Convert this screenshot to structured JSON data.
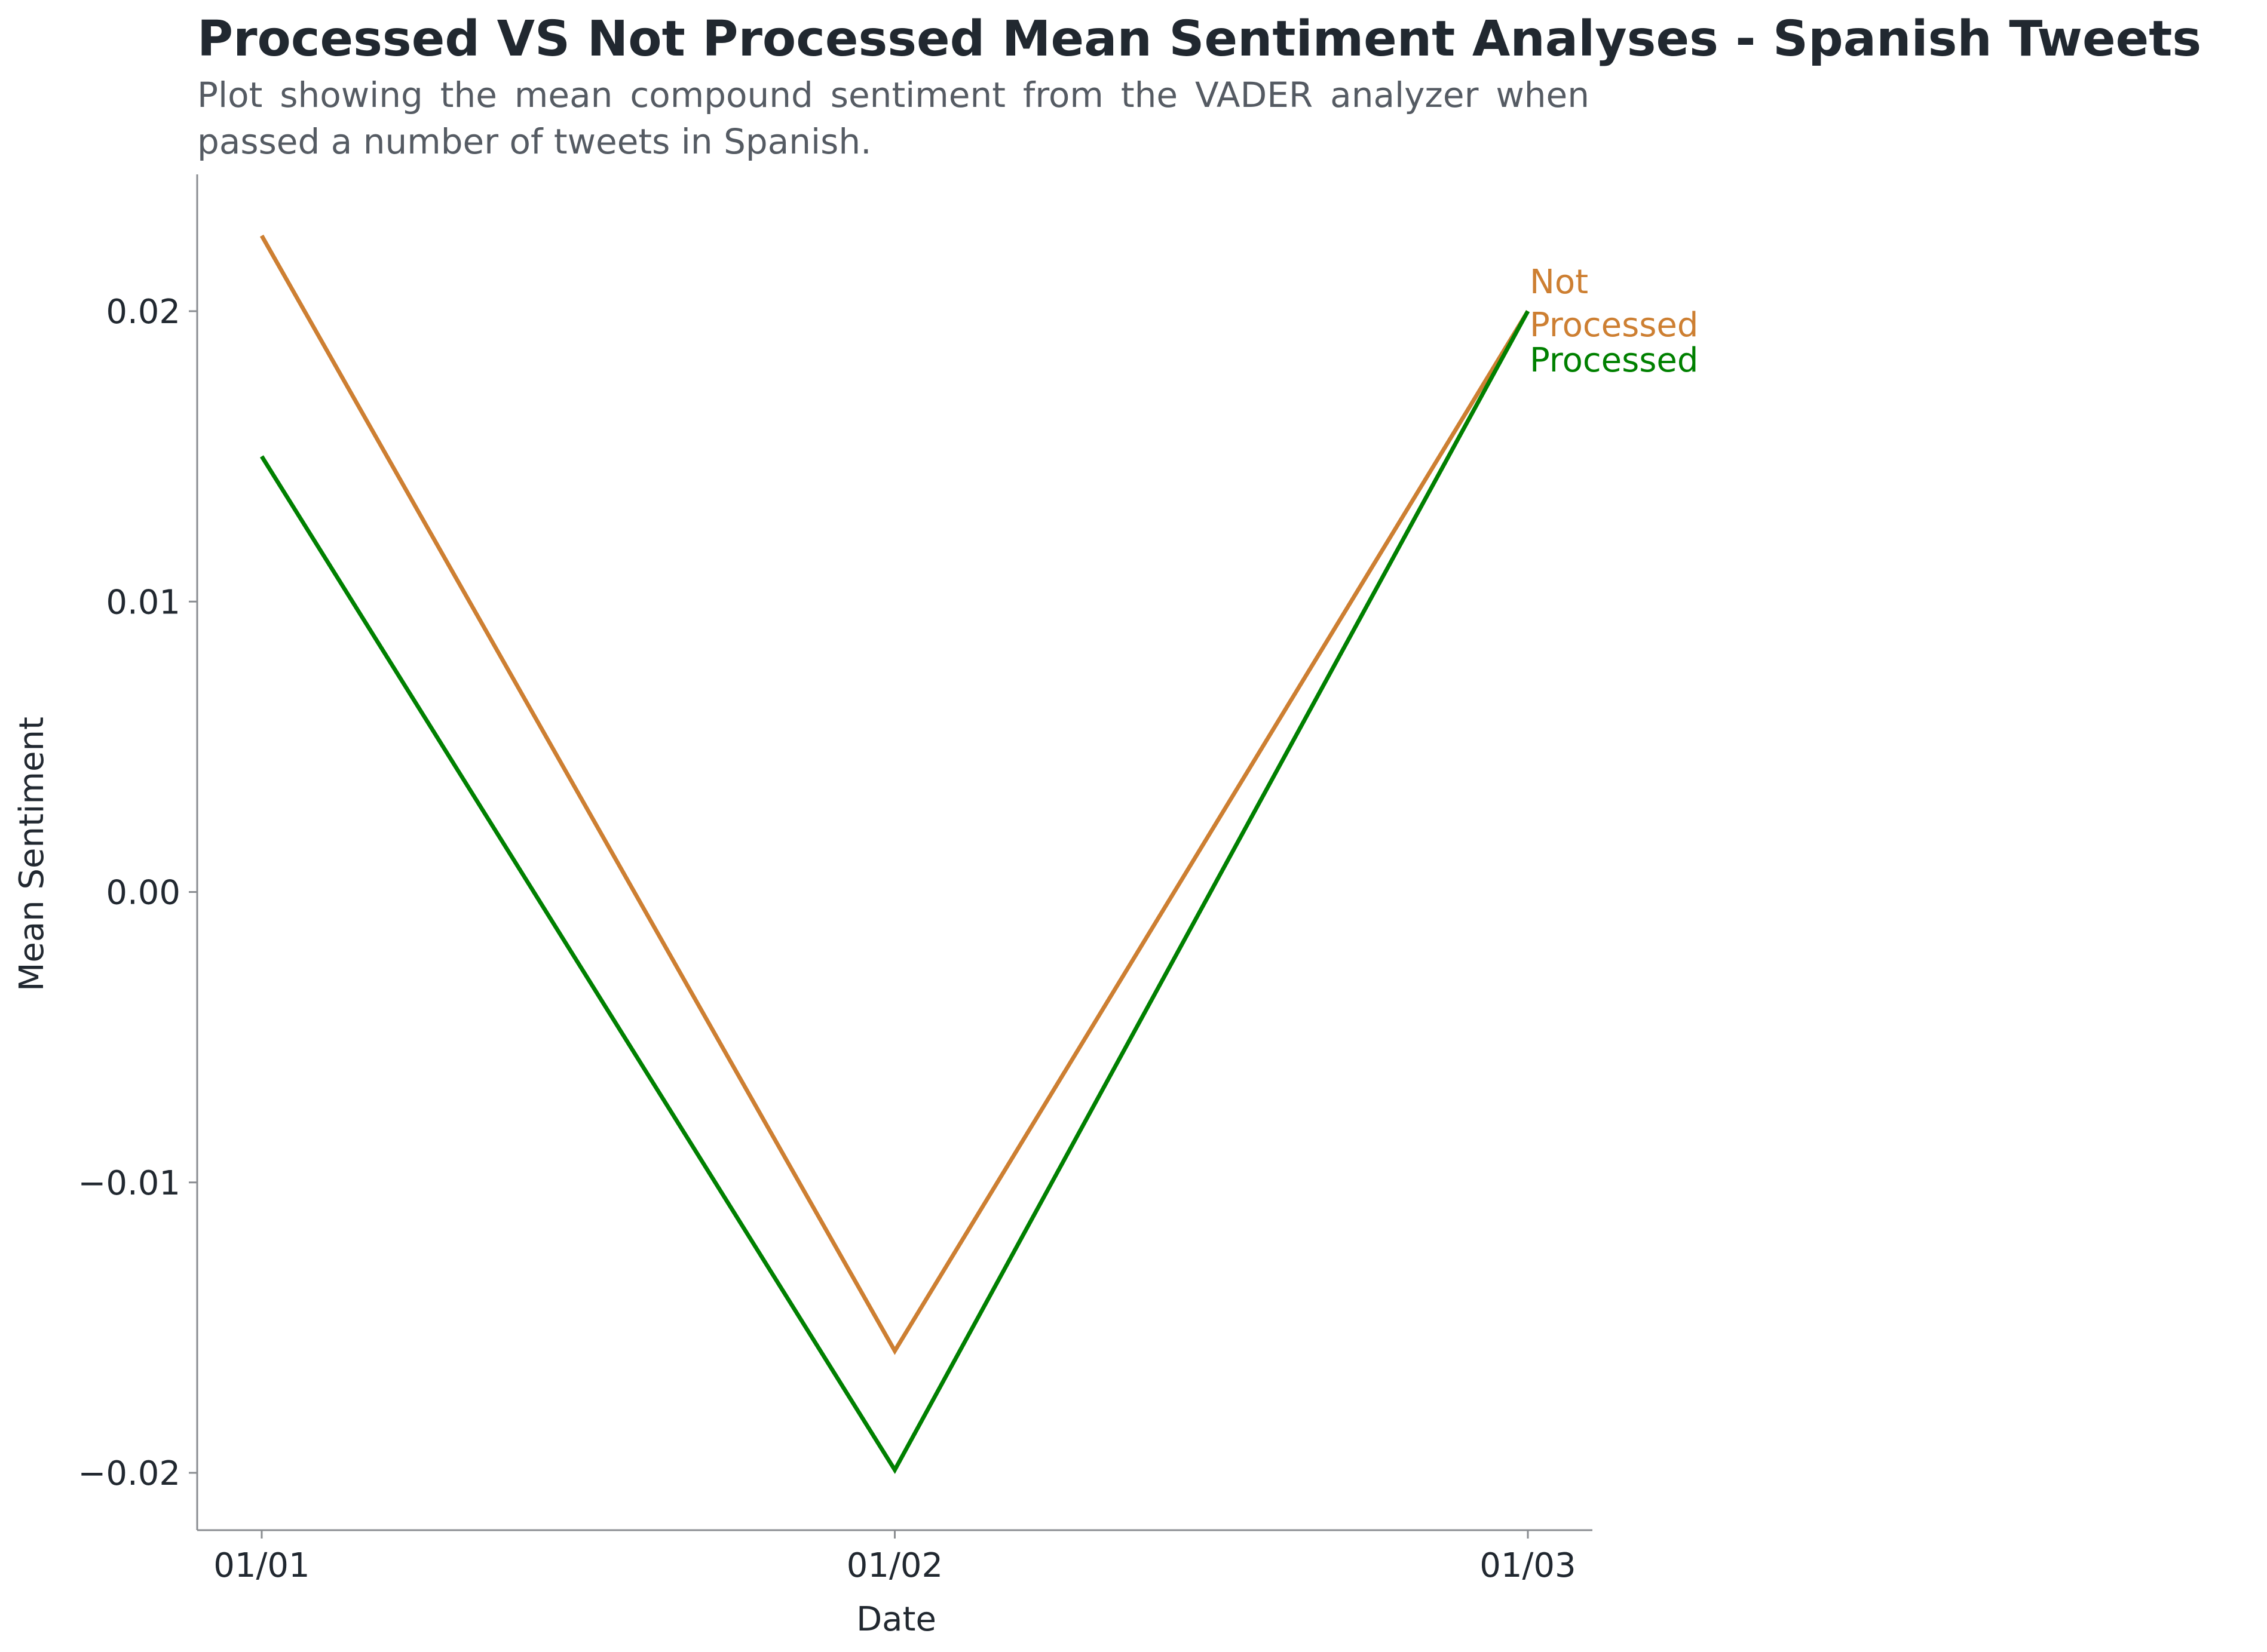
{
  "chart_data": {
    "type": "line",
    "title": "Processed VS Not Processed Mean Sentiment Analyses - Spanish Tweets",
    "subtitle": "Plot showing the mean compound sentiment from the VADER analyzer when passed a number of tweets in Spanish.",
    "xlabel": "Date",
    "ylabel": "Mean Sentiment",
    "categories": [
      "01/01",
      "01/02",
      "01/03"
    ],
    "yticks": [
      0.02,
      0.01,
      0.0,
      -0.01,
      -0.02
    ],
    "ytick_labels": [
      "0.02",
      "0.01",
      "0.00",
      "−0.01",
      "−0.02"
    ],
    "ylim": [
      -0.022,
      0.025
    ],
    "grid": false,
    "legend": "labels at line ends (right)",
    "series": [
      {
        "name": "Not Processed",
        "label_lines": [
          "Not",
          "Processed"
        ],
        "color": "#CD7F32",
        "values": [
          0.0226,
          -0.0158,
          0.02
        ]
      },
      {
        "name": "Processed",
        "label_lines": [
          "Processed"
        ],
        "color": "#008000",
        "values": [
          0.015,
          -0.0199,
          0.02
        ]
      }
    ],
    "colors": {
      "axis": "#8a8d91",
      "text": "#212830",
      "title": "#212830",
      "subtitle": "#555b63"
    }
  }
}
